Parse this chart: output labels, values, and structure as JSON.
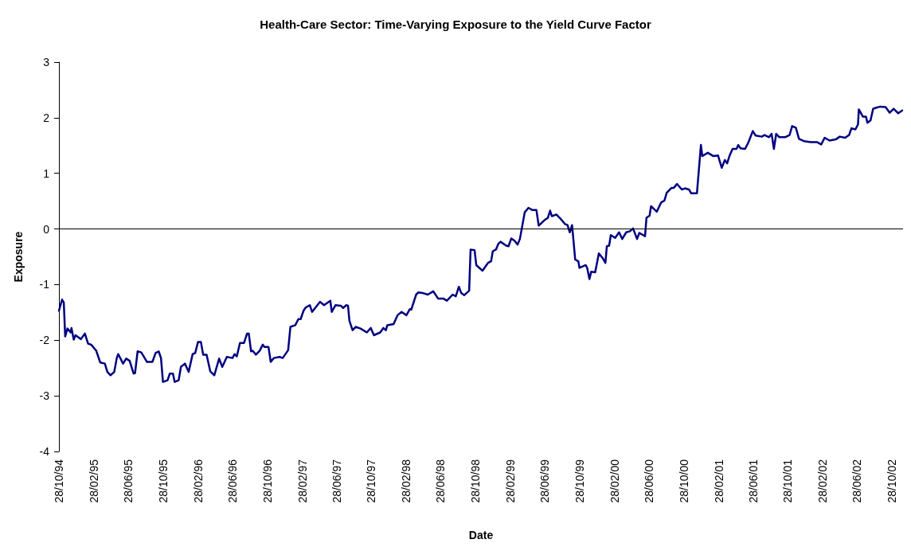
{
  "chart_data": {
    "type": "line",
    "title": "Health-Care Sector: Time-Varying Exposure to the Yield Curve Factor",
    "xlabel": "Date",
    "ylabel": "Exposure",
    "x": [
      "1994-10-28",
      "1994-11-08",
      "1994-11-14",
      "1994-11-19",
      "1994-11-27",
      "1994-12-08",
      "1994-12-11",
      "1994-12-19",
      "1994-12-25",
      "1995-01-13",
      "1995-01-27",
      "1995-02-07",
      "1995-02-18",
      "1995-03-08",
      "1995-03-22",
      "1995-04-07",
      "1995-04-16",
      "1995-04-27",
      "1995-05-10",
      "1995-05-19",
      "1995-05-24",
      "1995-06-10",
      "1995-06-21",
      "1995-07-03",
      "1995-07-17",
      "1995-07-22",
      "1995-07-31",
      "1995-08-13",
      "1995-09-02",
      "1995-09-21",
      "1995-10-02",
      "1995-10-13",
      "1995-10-21",
      "1995-10-28",
      "1995-11-13",
      "1995-11-21",
      "1995-12-02",
      "1995-12-08",
      "1995-12-22",
      "1995-12-30",
      "1996-01-13",
      "1996-01-26",
      "1996-02-09",
      "1996-02-18",
      "1996-02-28",
      "1996-03-09",
      "1996-03-17",
      "1996-03-29",
      "1996-04-11",
      "1996-04-25",
      "1996-05-12",
      "1996-05-23",
      "1996-06-08",
      "1996-06-28",
      "1996-07-05",
      "1996-07-13",
      "1996-07-24",
      "1996-08-07",
      "1996-08-18",
      "1996-08-24",
      "1996-09-01",
      "1996-09-07",
      "1996-09-18",
      "1996-10-01",
      "1996-10-12",
      "1996-10-18",
      "1996-11-01",
      "1996-11-09",
      "1996-11-20",
      "1996-12-10",
      "1996-12-21",
      "1997-01-09",
      "1997-01-17",
      "1997-02-03",
      "1997-02-14",
      "1997-02-22",
      "1997-03-04",
      "1997-03-12",
      "1997-03-26",
      "1997-04-03",
      "1997-04-20",
      "1997-05-01",
      "1997-05-15",
      "1997-06-06",
      "1997-06-11",
      "1997-06-24",
      "1997-07-13",
      "1997-07-21",
      "1997-08-01",
      "1997-08-07",
      "1997-08-12",
      "1997-08-23",
      "1997-09-03",
      "1997-09-20",
      "1997-10-12",
      "1997-10-26",
      "1997-11-06",
      "1997-11-28",
      "1997-12-09",
      "1997-12-18",
      "1997-12-23",
      "1998-01-14",
      "1998-01-28",
      "1998-02-11",
      "1998-02-28",
      "1998-03-12",
      "1998-03-17",
      "1998-04-03",
      "1998-04-11",
      "1998-04-25",
      "1998-05-14",
      "1998-06-02",
      "1998-06-19",
      "1998-07-07",
      "1998-07-20",
      "1998-08-09",
      "1998-08-20",
      "1998-08-31",
      "1998-09-08",
      "1998-09-19",
      "1998-10-06",
      "1998-10-11",
      "1998-10-25",
      "1998-10-31",
      "1998-11-22",
      "1998-12-11",
      "1998-12-22",
      "1998-12-28",
      "1999-01-08",
      "1999-01-16",
      "1999-01-24",
      "1999-02-13",
      "1999-02-21",
      "1999-03-03",
      "1999-03-14",
      "1999-03-25",
      "1999-04-02",
      "1999-04-19",
      "1999-05-02",
      "1999-05-16",
      "1999-05-30",
      "1999-06-07",
      "1999-06-30",
      "1999-07-09",
      "1999-07-17",
      "1999-07-23",
      "1999-08-08",
      "1999-08-25",
      "1999-09-07",
      "1999-09-16",
      "1999-09-24",
      "1999-10-02",
      "1999-10-13",
      "1999-10-24",
      "1999-10-28",
      "1999-11-19",
      "1999-11-24",
      "1999-12-02",
      "1999-12-08",
      "1999-12-22",
      "2000-01-04",
      "2000-01-18",
      "2000-01-27",
      "2000-02-01",
      "2000-02-09",
      "2000-02-15",
      "2000-03-01",
      "2000-03-15",
      "2000-03-26",
      "2000-04-09",
      "2000-04-22",
      "2000-05-03",
      "2000-05-17",
      "2000-05-25",
      "2000-06-14",
      "2000-06-19",
      "2000-06-30",
      "2000-07-05",
      "2000-07-25",
      "2000-08-10",
      "2000-08-21",
      "2000-08-29",
      "2000-09-15",
      "2000-09-23",
      "2000-10-04",
      "2000-10-21",
      "2000-11-01",
      "2000-11-15",
      "2000-11-23",
      "2000-12-13",
      "2000-12-27",
      "2001-01-01",
      "2001-01-20",
      "2001-02-09",
      "2001-02-25",
      "2001-03-10",
      "2001-03-21",
      "2001-03-29",
      "2001-04-06",
      "2001-04-17",
      "2001-05-01",
      "2001-05-07",
      "2001-05-15",
      "2001-05-31",
      "2001-06-11",
      "2001-06-27",
      "2001-07-07",
      "2001-07-29",
      "2001-08-07",
      "2001-08-23",
      "2001-09-01",
      "2001-09-09",
      "2001-09-17",
      "2001-09-28",
      "2001-10-18",
      "2001-11-03",
      "2001-11-12",
      "2001-11-25",
      "2001-12-06",
      "2001-12-23",
      "2002-01-17",
      "2002-02-08",
      "2002-02-22",
      "2002-03-06",
      "2002-03-23",
      "2002-04-14",
      "2002-04-28",
      "2002-05-17",
      "2002-05-31",
      "2002-06-08",
      "2002-06-22",
      "2002-07-01",
      "2002-07-04",
      "2002-07-18",
      "2002-07-29",
      "2002-08-03",
      "2002-08-14",
      "2002-08-23",
      "2002-09-03",
      "2002-09-17",
      "2002-10-06",
      "2002-10-20",
      "2002-11-03",
      "2002-11-19",
      "2002-12-03"
    ],
    "series": [
      {
        "color": "#000080",
        "values": [
          -1.47,
          -1.27,
          -1.32,
          -1.93,
          -1.79,
          -1.86,
          -1.78,
          -1.99,
          -1.91,
          -1.98,
          -1.88,
          -2.06,
          -2.08,
          -2.19,
          -2.4,
          -2.42,
          -2.57,
          -2.63,
          -2.57,
          -2.32,
          -2.25,
          -2.42,
          -2.33,
          -2.37,
          -2.6,
          -2.59,
          -2.2,
          -2.22,
          -2.39,
          -2.39,
          -2.23,
          -2.2,
          -2.32,
          -2.75,
          -2.72,
          -2.6,
          -2.6,
          -2.75,
          -2.72,
          -2.48,
          -2.42,
          -2.57,
          -2.25,
          -2.23,
          -2.03,
          -2.03,
          -2.26,
          -2.26,
          -2.56,
          -2.63,
          -2.33,
          -2.48,
          -2.3,
          -2.32,
          -2.25,
          -2.29,
          -2.05,
          -2.05,
          -1.88,
          -1.88,
          -2.2,
          -2.19,
          -2.26,
          -2.19,
          -2.08,
          -2.12,
          -2.12,
          -2.39,
          -2.32,
          -2.3,
          -2.32,
          -2.18,
          -1.76,
          -1.73,
          -1.62,
          -1.62,
          -1.47,
          -1.41,
          -1.37,
          -1.49,
          -1.38,
          -1.31,
          -1.37,
          -1.29,
          -1.49,
          -1.37,
          -1.38,
          -1.42,
          -1.37,
          -1.38,
          -1.65,
          -1.82,
          -1.76,
          -1.79,
          -1.86,
          -1.78,
          -1.91,
          -1.86,
          -1.78,
          -1.82,
          -1.73,
          -1.71,
          -1.55,
          -1.49,
          -1.55,
          -1.44,
          -1.45,
          -1.18,
          -1.14,
          -1.15,
          -1.18,
          -1.12,
          -1.25,
          -1.25,
          -1.29,
          -1.18,
          -1.21,
          -1.04,
          -1.15,
          -1.19,
          -1.11,
          -0.37,
          -0.38,
          -0.65,
          -0.75,
          -0.61,
          -0.58,
          -0.4,
          -0.37,
          -0.27,
          -0.23,
          -0.3,
          -0.31,
          -0.17,
          -0.21,
          -0.28,
          -0.18,
          0.3,
          0.38,
          0.34,
          0.34,
          0.06,
          0.17,
          0.2,
          0.33,
          0.23,
          0.26,
          0.17,
          0.09,
          0.07,
          -0.06,
          0.07,
          -0.55,
          -0.58,
          -0.7,
          -0.65,
          -0.7,
          -0.9,
          -0.77,
          -0.78,
          -0.44,
          -0.53,
          -0.61,
          -0.31,
          -0.3,
          -0.11,
          -0.16,
          -0.06,
          -0.18,
          -0.06,
          -0.04,
          0.01,
          -0.18,
          -0.07,
          -0.13,
          0.2,
          0.24,
          0.41,
          0.31,
          0.48,
          0.51,
          0.65,
          0.74,
          0.74,
          0.81,
          0.71,
          0.73,
          0.71,
          0.64,
          0.64,
          1.51,
          1.31,
          1.37,
          1.31,
          1.32,
          1.1,
          1.24,
          1.18,
          1.31,
          1.44,
          1.44,
          1.51,
          1.45,
          1.44,
          1.55,
          1.76,
          1.68,
          1.66,
          1.69,
          1.65,
          1.71,
          1.44,
          1.71,
          1.65,
          1.65,
          1.69,
          1.85,
          1.82,
          1.62,
          1.58,
          1.56,
          1.56,
          1.52,
          1.64,
          1.59,
          1.61,
          1.66,
          1.64,
          1.69,
          1.81,
          1.79,
          1.88,
          2.15,
          2.02,
          2.02,
          1.91,
          1.95,
          2.16,
          2.18,
          2.2,
          2.19,
          2.09,
          2.16,
          2.08,
          2.13
        ]
      }
    ],
    "xlim": [
      "1994-10-28",
      "2002-12-06"
    ],
    "xticks": [
      {
        "value": "1994-10-28",
        "label": "28/10/94"
      },
      {
        "value": "1995-02-28",
        "label": "28/02/95"
      },
      {
        "value": "1995-06-28",
        "label": "28/06/95"
      },
      {
        "value": "1995-10-28",
        "label": "28/10/95"
      },
      {
        "value": "1996-02-28",
        "label": "28/02/96"
      },
      {
        "value": "1996-06-28",
        "label": "28/06/96"
      },
      {
        "value": "1996-10-28",
        "label": "28/10/96"
      },
      {
        "value": "1997-02-28",
        "label": "28/02/97"
      },
      {
        "value": "1997-06-28",
        "label": "28/06/97"
      },
      {
        "value": "1997-10-28",
        "label": "28/10/97"
      },
      {
        "value": "1998-02-28",
        "label": "28/02/98"
      },
      {
        "value": "1998-06-28",
        "label": "28/06/98"
      },
      {
        "value": "1998-10-28",
        "label": "28/10/98"
      },
      {
        "value": "1999-02-28",
        "label": "28/02/99"
      },
      {
        "value": "1999-06-28",
        "label": "28/06/99"
      },
      {
        "value": "1999-10-28",
        "label": "28/10/99"
      },
      {
        "value": "2000-02-28",
        "label": "28/02/00"
      },
      {
        "value": "2000-06-28",
        "label": "28/06/00"
      },
      {
        "value": "2000-10-28",
        "label": "28/10/00"
      },
      {
        "value": "2001-02-28",
        "label": "28/02/01"
      },
      {
        "value": "2001-06-28",
        "label": "28/06/01"
      },
      {
        "value": "2001-10-28",
        "label": "28/10/01"
      },
      {
        "value": "2002-02-28",
        "label": "28/02/02"
      },
      {
        "value": "2002-06-28",
        "label": "28/06/02"
      },
      {
        "value": "2002-10-28",
        "label": "28/10/02"
      }
    ],
    "ylim": [
      -4,
      3
    ],
    "yticks": [
      -4,
      -3,
      -2,
      -1,
      0,
      1,
      2,
      3
    ],
    "ref_lines": [
      {
        "axis": "y",
        "value": 0,
        "color": "#000000"
      }
    ],
    "grid": false,
    "marker": "none",
    "line_style": "solid"
  }
}
